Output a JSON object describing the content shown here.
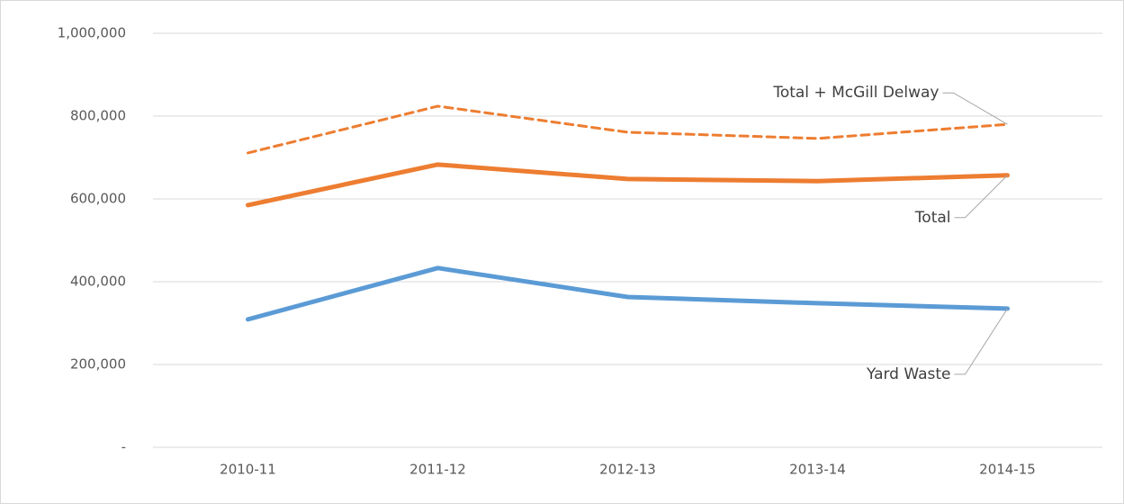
{
  "chart_data": {
    "type": "line",
    "categories": [
      "2010-11",
      "2011-12",
      "2012-13",
      "2013-14",
      "2014-15"
    ],
    "series": [
      {
        "name": "Yard Waste",
        "color": "#5b9bd5",
        "line_style": "solid",
        "values": [
          309000,
          433000,
          363000,
          348000,
          335000
        ]
      },
      {
        "name": "Total",
        "color": "#ed7d31",
        "line_style": "solid",
        "values": [
          585000,
          683000,
          648000,
          643000,
          657000
        ]
      },
      {
        "name": "Total + McGill Delway",
        "color": "#ed7d31",
        "line_style": "dashed",
        "values": [
          711000,
          824000,
          761000,
          746000,
          780000
        ]
      }
    ],
    "ylim": [
      0,
      1000000
    ],
    "yticks": [
      {
        "value": 0,
        "label": "-"
      },
      {
        "value": 200000,
        "label": "200,000"
      },
      {
        "value": 400000,
        "label": "400,000"
      },
      {
        "value": 600000,
        "label": "600,000"
      },
      {
        "value": 800000,
        "label": "800,000"
      },
      {
        "value": 1000000,
        "label": "1,000,000"
      }
    ],
    "grid": true
  }
}
